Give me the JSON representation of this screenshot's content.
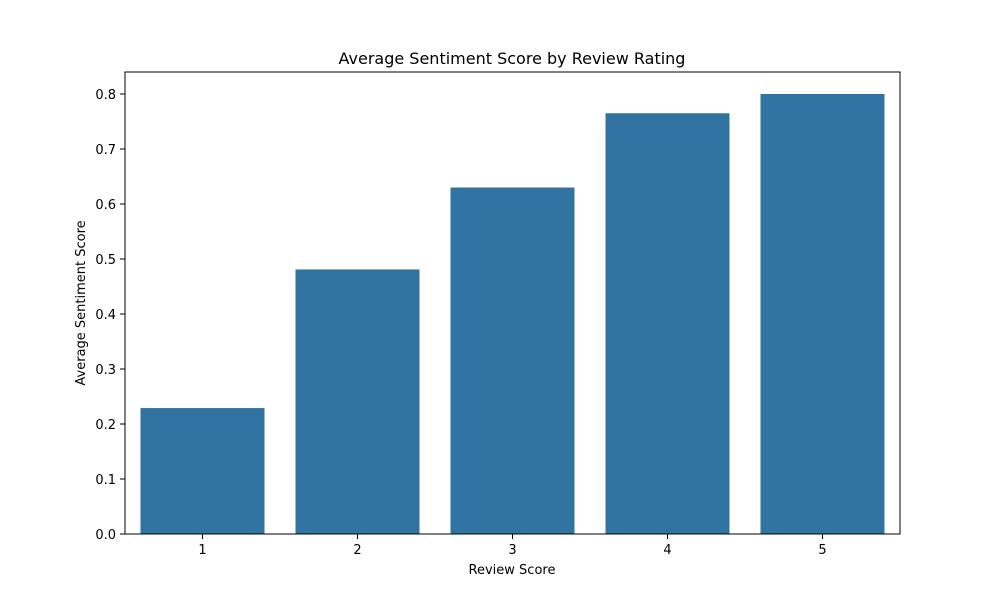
{
  "chart_data": {
    "type": "bar",
    "title": "Average Sentiment Score by Review Rating",
    "xlabel": "Review Score",
    "ylabel": "Average Sentiment Score",
    "categories": [
      "1",
      "2",
      "3",
      "4",
      "5"
    ],
    "values": [
      0.229,
      0.481,
      0.63,
      0.765,
      0.8
    ],
    "ylim": [
      0,
      0.84
    ],
    "yticks": [
      "0.0",
      "0.1",
      "0.2",
      "0.3",
      "0.4",
      "0.5",
      "0.6",
      "0.7",
      "0.8"
    ],
    "grid": false,
    "bar_color": "#3274a1"
  }
}
